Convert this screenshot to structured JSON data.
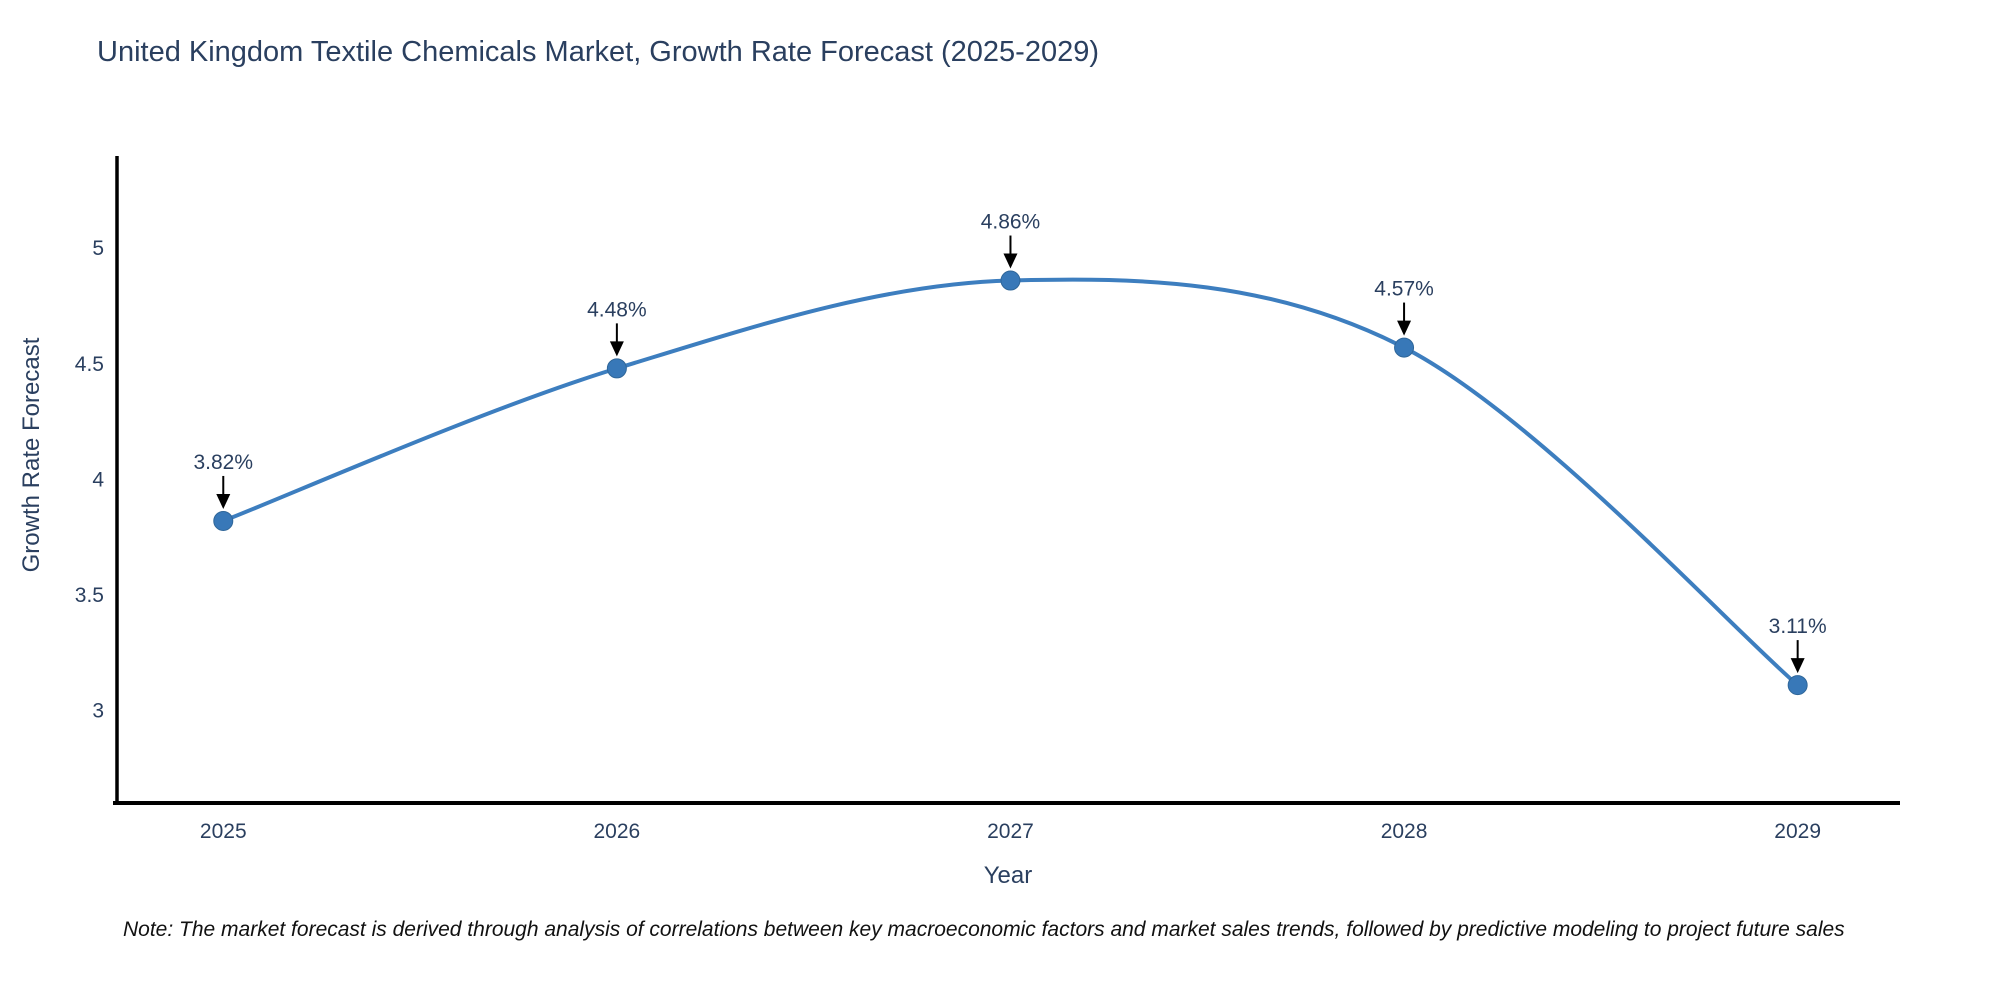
{
  "title": "United Kingdom Textile Chemicals Market, Growth Rate Forecast (2025-2029)",
  "note": "Note: The market forecast is derived through analysis of correlations between key macroeconomic factors and market sales trends, followed by predictive modeling to project future sales",
  "colors": {
    "line": "#3d7ebf",
    "marker_fill": "#3878b8",
    "marker_edge": "#2f6699",
    "text": "#2a3f5f",
    "axis": "#000000",
    "annotation_arrow": "#000000",
    "background": "#ffffff"
  },
  "chart_data": {
    "type": "line",
    "title": "United Kingdom Textile Chemicals Market, Growth Rate Forecast (2025-2029)",
    "xlabel": "Year",
    "ylabel": "Growth Rate Forecast",
    "x": [
      2025,
      2026,
      2027,
      2028,
      2029
    ],
    "values": [
      3.82,
      4.48,
      4.86,
      4.57,
      3.11
    ],
    "point_labels": [
      "3.82%",
      "4.48%",
      "4.86%",
      "4.57%",
      "3.11%"
    ],
    "xtick_labels": [
      "2025",
      "2026",
      "2027",
      "2028",
      "2029"
    ],
    "yticks": [
      3,
      3.5,
      4,
      4.5,
      5
    ],
    "ytick_labels": [
      "3",
      "3.5",
      "4",
      "4.5",
      "5"
    ],
    "xlim": [
      2024.73,
      2029.26
    ],
    "ylim": [
      2.6,
      5.39
    ],
    "line_shape": "spline",
    "grid": false,
    "legend": "none",
    "marker_size": 19,
    "line_width": 4
  }
}
